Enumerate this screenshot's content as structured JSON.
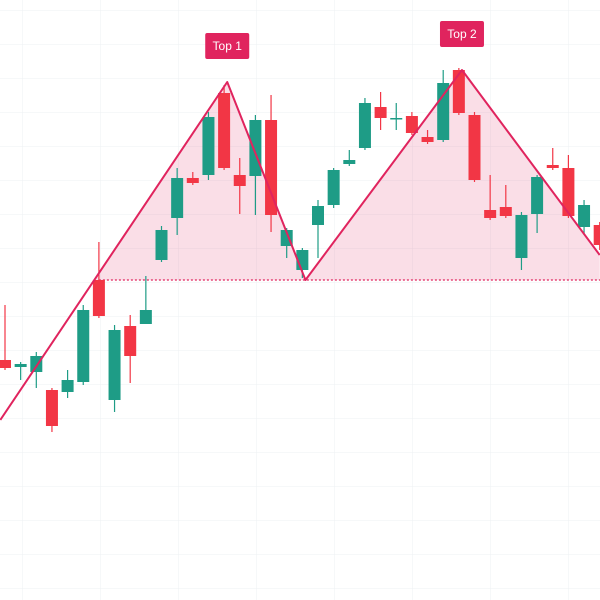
{
  "chart_data": {
    "type": "candlestick",
    "ylim": [
      0,
      600
    ],
    "up_color": "#1e9c86",
    "down_color": "#f23645",
    "open": [
      240,
      233,
      228,
      210,
      208,
      218,
      320,
      200,
      274,
      276,
      340,
      382,
      422,
      425,
      507,
      425,
      424,
      480,
      354,
      330,
      375,
      395,
      436,
      452,
      493,
      481,
      484,
      463,
      460,
      530,
      485,
      390,
      393,
      342,
      386,
      435,
      432,
      373,
      375
    ],
    "high": [
      295,
      238,
      248,
      212,
      230,
      295,
      358,
      275,
      285,
      324,
      374,
      432,
      428,
      488,
      515,
      442,
      485,
      505,
      372,
      352,
      400,
      432,
      450,
      502,
      508,
      497,
      488,
      470,
      530,
      532,
      488,
      425,
      415,
      388,
      425,
      452,
      445,
      400,
      378
    ],
    "low": [
      230,
      220,
      212,
      168,
      202,
      215,
      282,
      188,
      217,
      276,
      338,
      365,
      415,
      420,
      430,
      386,
      385,
      368,
      342,
      322,
      342,
      392,
      434,
      450,
      470,
      470,
      465,
      456,
      458,
      485,
      418,
      380,
      382,
      330,
      367,
      430,
      382,
      365,
      350
    ],
    "close": [
      232,
      236,
      244,
      174,
      220,
      290,
      284,
      270,
      244,
      290,
      370,
      422,
      417,
      483,
      432,
      414,
      480,
      385,
      370,
      350,
      394,
      430,
      440,
      497,
      482,
      482,
      467,
      458,
      517,
      487,
      420,
      382,
      384,
      385,
      423,
      432,
      384,
      395,
      355
    ],
    "pattern": {
      "color": "#e0245e",
      "x": [
        -0.3,
        14.2,
        19.2,
        29.2,
        38.0
      ],
      "y": [
        180,
        518,
        320,
        530,
        345
      ]
    },
    "neckline": {
      "start": 6,
      "value": 320
    },
    "annotations": [
      {
        "text": "Top 1"
      },
      {
        "text": "Top 2"
      }
    ]
  }
}
